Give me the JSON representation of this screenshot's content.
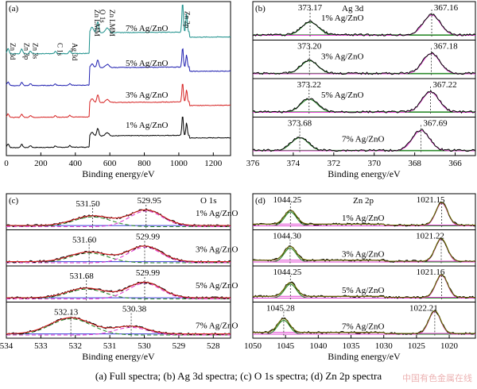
{
  "caption": "(a) Full spectra; (b) Ag 3d spectra; (c) O 1s spectra; (d) Zn 2p spectra",
  "watermark": "中国有色金属在线",
  "colors": {
    "black": "#000000",
    "red": "#d62222",
    "blue": "#1f1fb0",
    "teal": "#1a8f8a",
    "green": "#2e8b2e",
    "magenta": "#e040d0",
    "envelope": "#6b6b00",
    "dash": "#444444"
  },
  "chart_data": [
    {
      "id": "a",
      "type": "line",
      "panel_label": "(a)",
      "xlabel": "Binding energy/eV",
      "xlim": [
        0,
        1300
      ],
      "x_ticks": [
        0,
        200,
        400,
        600,
        800,
        1000,
        1200
      ],
      "x_tick_labels": [
        "0",
        "200",
        "400",
        "600",
        "800",
        "1000",
        "1200"
      ],
      "peak_labels": [
        {
          "text": "Zn 3d",
          "x": 10
        },
        {
          "text": "Zn 3p",
          "x": 89
        },
        {
          "text": "Zn 3s",
          "x": 140
        },
        {
          "text": "C 1s",
          "x": 284
        },
        {
          "text": "Ag 3d",
          "x": 368
        },
        {
          "text": "Zn LMM",
          "x": 497
        },
        {
          "text": "O 1s",
          "x": 530
        },
        {
          "text": "Zn LMM",
          "x": 585
        },
        {
          "text": "Zn 2p",
          "x": 1022
        }
      ],
      "series": [
        {
          "name": "1% Ag/ZnO",
          "color": "#000000"
        },
        {
          "name": "3% Ag/ZnO",
          "color": "#d62222"
        },
        {
          "name": "5% Ag/ZnO",
          "color": "#1f1fb0"
        },
        {
          "name": "7% Ag/ZnO",
          "color": "#1a8f8a"
        }
      ]
    },
    {
      "id": "b",
      "type": "line",
      "panel_label": "(b)",
      "title": "Ag 3d",
      "xlabel": "Binding energy/eV",
      "xlim": [
        376,
        365
      ],
      "x_ticks": [
        376,
        374,
        372,
        370,
        368,
        366
      ],
      "x_tick_labels": [
        "376",
        "374",
        "372",
        "370",
        "368",
        "366"
      ],
      "series": [
        {
          "name": "1% Ag/ZnO",
          "peaks": [
            373.17,
            367.16
          ]
        },
        {
          "name": "3% Ag/ZnO",
          "peaks": [
            373.2,
            367.18
          ]
        },
        {
          "name": "5% Ag/ZnO",
          "peaks": [
            373.22,
            367.22
          ]
        },
        {
          "name": "7% Ag/ZnO",
          "peaks": [
            373.68,
            367.69
          ]
        }
      ],
      "peak_value_labels": [
        [
          "373.17",
          "367.16"
        ],
        [
          "373.20",
          "367.18"
        ],
        [
          "373.22",
          "367.22"
        ],
        [
          "373.68",
          "367.69"
        ]
      ]
    },
    {
      "id": "c",
      "type": "line",
      "panel_label": "(c)",
      "title": "O 1s",
      "xlabel": "Binding energy/eV",
      "xlim": [
        534,
        527.5
      ],
      "x_ticks": [
        534,
        533,
        532,
        531,
        530,
        529,
        528
      ],
      "x_tick_labels": [
        "534",
        "533",
        "532",
        "531",
        "530",
        "529",
        "528"
      ],
      "series": [
        {
          "name": "1% Ag/ZnO",
          "peaks": [
            531.5,
            529.95
          ]
        },
        {
          "name": "3% Ag/ZnO",
          "peaks": [
            531.6,
            529.99
          ]
        },
        {
          "name": "5% Ag/ZnO",
          "peaks": [
            531.68,
            529.99
          ]
        },
        {
          "name": "7% Ag/ZnO",
          "peaks": [
            532.13,
            530.38
          ]
        }
      ],
      "peak_value_labels": [
        [
          "531.50",
          "529.95"
        ],
        [
          "531.60",
          "529.99"
        ],
        [
          "531.68",
          "529.99"
        ],
        [
          "532.13",
          "530.38"
        ]
      ]
    },
    {
      "id": "d",
      "type": "line",
      "panel_label": "(d)",
      "title": "Zn 2p",
      "xlabel": "Binding energy/eV",
      "xlim": [
        1050,
        1016
      ],
      "x_ticks": [
        1050,
        1045,
        1040,
        1035,
        1030,
        1025,
        1020
      ],
      "x_tick_labels": [
        "1050",
        "1045",
        "1040",
        "1035",
        "1030",
        "1025",
        "1020"
      ],
      "series": [
        {
          "name": "1% Ag/ZnO",
          "peaks": [
            1044.25,
            1021.15
          ]
        },
        {
          "name": "3% Ag/ZnO",
          "peaks": [
            1044.3,
            1021.22
          ]
        },
        {
          "name": "5% Ag/ZnO",
          "peaks": [
            1044.25,
            1021.16
          ]
        },
        {
          "name": "7% Ag/ZnO",
          "peaks": [
            1045.28,
            1022.21
          ]
        }
      ],
      "peak_value_labels": [
        [
          "1044.25",
          "1021.15"
        ],
        [
          "1044.30",
          "1021.22"
        ],
        [
          "1044.25",
          "1021.16"
        ],
        [
          "1045.28",
          "1022.21"
        ]
      ]
    }
  ]
}
